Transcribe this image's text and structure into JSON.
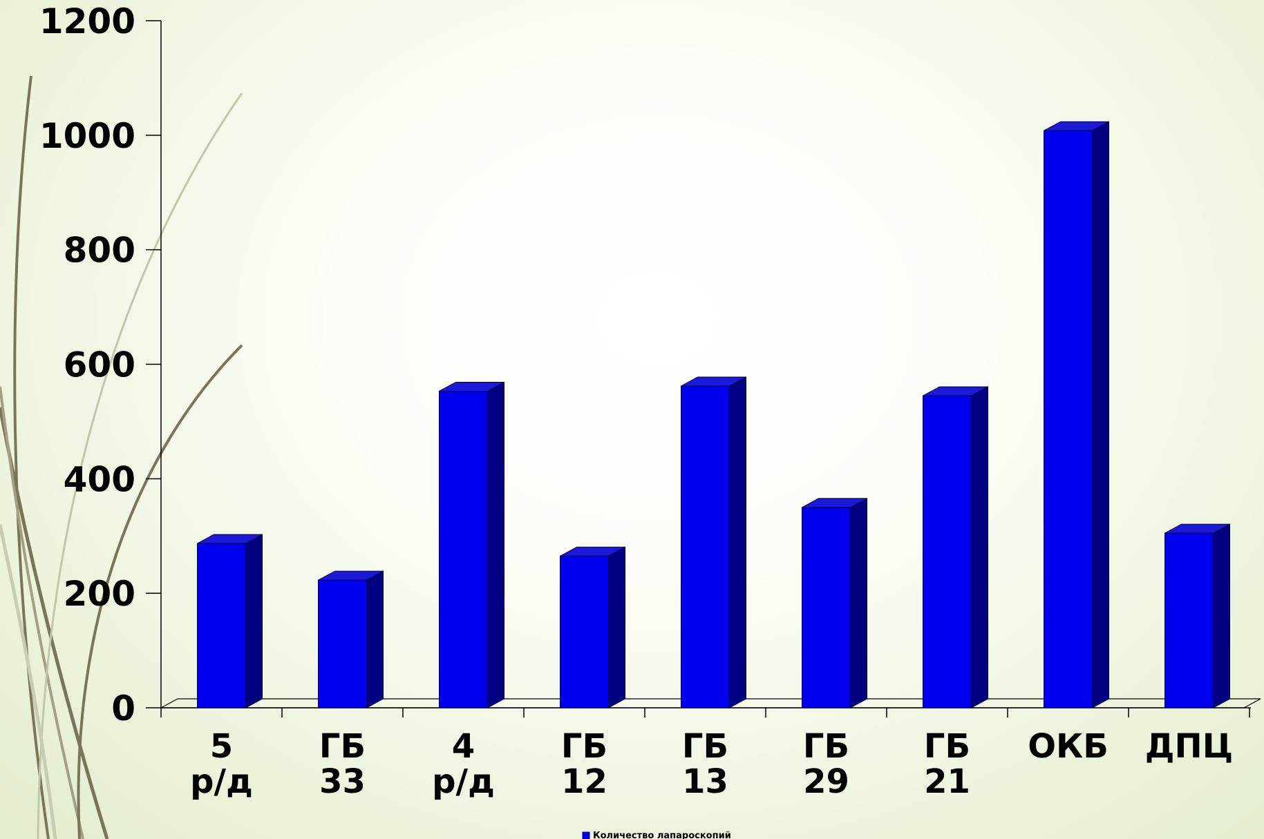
{
  "chart_data": {
    "type": "bar",
    "title": "",
    "xlabel": "",
    "ylabel": "",
    "ylim": [
      0,
      1200
    ],
    "yticks": [
      0,
      200,
      400,
      600,
      800,
      1000,
      1200
    ],
    "categories": [
      [
        "5",
        "р/д"
      ],
      [
        "ГБ",
        "33"
      ],
      [
        "4",
        "р/д"
      ],
      [
        "ГБ",
        "12"
      ],
      [
        "ГБ",
        "13"
      ],
      [
        "ГБ",
        "29"
      ],
      [
        "ГБ",
        "21"
      ],
      [
        "ОКБ"
      ],
      [
        "ДПЦ"
      ]
    ],
    "series": [
      {
        "name": "Количество лапароскопий",
        "values": [
          287,
          223,
          553,
          265,
          562,
          350,
          545,
          1008,
          305
        ]
      }
    ],
    "legend": {
      "position": "bottom-center"
    },
    "grid": false,
    "style": "3d-bars",
    "colors": {
      "bar_front": "#0000ee",
      "bar_side": "#000080",
      "bar_top": "#1a1ad8",
      "axis": "#000000"
    }
  }
}
